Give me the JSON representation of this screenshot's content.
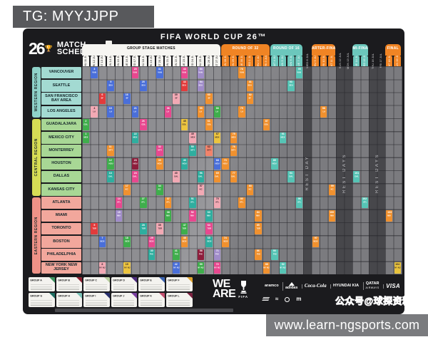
{
  "overlay": {
    "tg_badge": "TG: MYYJJPP",
    "url_bar": "www.learn-ngsports.com"
  },
  "poster": {
    "title": "FIFA WORLD CUP 26™",
    "logo": {
      "mark": "26",
      "trophy": "🏆",
      "line1": "MATCH",
      "line2": "SCHEDULE"
    },
    "weare": {
      "line1": "WE",
      "line2": "ARE",
      "fifa": "FIFA"
    },
    "watermark": "公众号@球探资料库"
  },
  "stage_tabs": [
    {
      "label": "GROUP STAGE MATCHES",
      "type": "white",
      "start": 0,
      "span": 17
    },
    {
      "label": "ROUND OF 32",
      "type": "orange",
      "start": 17,
      "span": 6
    },
    {
      "label": "ROUND OF 16",
      "type": "teal",
      "start": 23,
      "span": 4
    },
    {
      "label": "QUARTER-FINALS",
      "type": "orange",
      "start": 28,
      "span": 3
    },
    {
      "label": "SEMI-FINALS",
      "type": "teal",
      "start": 33,
      "span": 2
    },
    {
      "label": "FINAL",
      "type": "orange",
      "start": 37,
      "span": 2
    }
  ],
  "columns": [
    {
      "date": "THU 11 JUN",
      "stage": "group"
    },
    {
      "date": "FRI 12 JUN",
      "stage": "group"
    },
    {
      "date": "SAT 13 JUN",
      "stage": "group"
    },
    {
      "date": "SUN 14 JUN",
      "stage": "group"
    },
    {
      "date": "MON 15 JUN",
      "stage": "group"
    },
    {
      "date": "TUE 16 JUN",
      "stage": "group"
    },
    {
      "date": "WED 17 JUN",
      "stage": "group"
    },
    {
      "date": "THU 18 JUN",
      "stage": "group"
    },
    {
      "date": "FRI 19 JUN",
      "stage": "group"
    },
    {
      "date": "SAT 20 JUN",
      "stage": "group"
    },
    {
      "date": "SUN 21 JUN",
      "stage": "group"
    },
    {
      "date": "MON 22 JUN",
      "stage": "group"
    },
    {
      "date": "TUE 23 JUN",
      "stage": "group"
    },
    {
      "date": "WED 24 JUN",
      "stage": "group"
    },
    {
      "date": "THU 25 JUN",
      "stage": "group"
    },
    {
      "date": "FRI 26 JUN",
      "stage": "group"
    },
    {
      "date": "SAT 27 JUN",
      "stage": "group"
    },
    {
      "date": "SUN 28 JUN",
      "stage": "r32"
    },
    {
      "date": "MON 29 JUN",
      "stage": "r32"
    },
    {
      "date": "TUE 30 JUN",
      "stage": "r32"
    },
    {
      "date": "WED 1 JUL",
      "stage": "r32"
    },
    {
      "date": "THU 2 JUL",
      "stage": "r32"
    },
    {
      "date": "FRI 3 JUL",
      "stage": "r32"
    },
    {
      "date": "SAT 4 JUL",
      "stage": "r16"
    },
    {
      "date": "SUN 5 JUL",
      "stage": "r16"
    },
    {
      "date": "MON 6 JUL",
      "stage": "r16"
    },
    {
      "date": "TUE 7 JUL",
      "stage": "r16"
    },
    {
      "date": "WED 8 JUL",
      "stage": "rest"
    },
    {
      "date": "THU 9 JUL",
      "stage": "qf"
    },
    {
      "date": "FRI 10 JUL",
      "stage": "qf"
    },
    {
      "date": "SAT 11 JUL",
      "stage": "qf"
    },
    {
      "date": "SUN 12 JUL",
      "stage": "rest"
    },
    {
      "date": "MON 13 JUL",
      "stage": "rest"
    },
    {
      "date": "TUE 14 JUL",
      "stage": "sf"
    },
    {
      "date": "WED 15 JUL",
      "stage": "sf"
    },
    {
      "date": "THU 16 JUL",
      "stage": "rest"
    },
    {
      "date": "FRI 17 JUL",
      "stage": "rest"
    },
    {
      "date": "SAT 18 JUL",
      "stage": "final"
    },
    {
      "date": "SUN 19 JUL",
      "stage": "final"
    }
  ],
  "rest_notes": [
    {
      "label": "REST DAY",
      "start": 27,
      "span": 1
    },
    {
      "label": "REST DAYS",
      "start": 31,
      "span": 2
    },
    {
      "label": "REST DAYS",
      "start": 35,
      "span": 2
    }
  ],
  "regions": [
    {
      "label": "WESTERN REGION",
      "strip": "#8fd2c9",
      "cell": "#a3dad2",
      "row0": 0,
      "rows": 4
    },
    {
      "label": "CENTRAL REGION",
      "strip": "#d6dc55",
      "cell": "#a8d795",
      "row0": 4,
      "rows": 6
    },
    {
      "label": "EASTERN REGION",
      "strip": "#ef9287",
      "cell": "#f2a79c",
      "row0": 10,
      "rows": 6
    }
  ],
  "cities": [
    {
      "name": "VANCOUVER",
      "code": "VAN",
      "region": 0
    },
    {
      "name": "SEATTLE",
      "code": "SEA",
      "region": 0
    },
    {
      "name": "SAN FRANCISCO BAY AREA",
      "code": "SF",
      "region": 0
    },
    {
      "name": "LOS ANGELES",
      "code": "LA",
      "region": 0
    },
    {
      "name": "GUADALAJARA",
      "code": "GDL",
      "region": 1
    },
    {
      "name": "MEXICO CITY",
      "code": "MEX",
      "region": 1
    },
    {
      "name": "MONTERREY",
      "code": "MTY",
      "region": 1
    },
    {
      "name": "HOUSTON",
      "code": "HOU",
      "region": 1
    },
    {
      "name": "DALLAS",
      "code": "DAL",
      "region": 1
    },
    {
      "name": "KANSAS CITY",
      "code": "KC",
      "region": 1
    },
    {
      "name": "ATLANTA",
      "code": "ATL",
      "region": 2
    },
    {
      "name": "MIAMI",
      "code": "MIA",
      "region": 2
    },
    {
      "name": "TORONTO",
      "code": "TOR",
      "region": 2
    },
    {
      "name": "BOSTON",
      "code": "BOS",
      "region": 2
    },
    {
      "name": "PHILADELPHIA",
      "code": "PHI",
      "region": 2
    },
    {
      "name": "NEW YORK NEW JERSEY",
      "code": "NY NJ",
      "region": 2
    }
  ],
  "cell_colors": {
    "blu": "#4a6fd9",
    "red": "#e23b3c",
    "pnk": "#f2a9b4",
    "mag": "#e8488f",
    "pur": "#a08cc9",
    "tea": "#2fae9f",
    "grn": "#3fae4c",
    "org": "#f0912f",
    "drd": "#8e1e3c",
    "yel": "#ecc43f",
    "sal": "#f2836b",
    "te2": "#56c4b5",
    "gld": "#e8c33c"
  },
  "dark_text_colors": [
    "pnk",
    "yel",
    "sal",
    "gld"
  ],
  "cells_format": "[rowIndex, colIndex, colorKey, matchNumber]",
  "cells": [
    [
      5,
      0,
      "grn",
      "1"
    ],
    [
      4,
      0,
      "grn",
      "2"
    ],
    [
      0,
      1,
      "blu",
      "3"
    ],
    [
      3,
      1,
      "pnk",
      "4"
    ],
    [
      12,
      1,
      "red",
      "5"
    ],
    [
      2,
      2,
      "red",
      "6"
    ],
    [
      13,
      2,
      "blu",
      "7"
    ],
    [
      15,
      2,
      "pnk",
      "8"
    ],
    [
      1,
      3,
      "blu",
      "9"
    ],
    [
      3,
      3,
      "blu",
      "10"
    ],
    [
      6,
      3,
      "org",
      "11"
    ],
    [
      7,
      3,
      "grn",
      "12"
    ],
    [
      8,
      3,
      "tea",
      "13"
    ],
    [
      10,
      4,
      "mag",
      "14"
    ],
    [
      11,
      4,
      "pur",
      "15"
    ],
    [
      2,
      5,
      "blu",
      "16"
    ],
    [
      9,
      5,
      "org",
      "17"
    ],
    [
      13,
      5,
      "grn",
      "18"
    ],
    [
      15,
      5,
      "yel",
      "19"
    ],
    [
      0,
      6,
      "mag",
      "20"
    ],
    [
      3,
      6,
      "blu",
      "21"
    ],
    [
      5,
      6,
      "tea",
      "22"
    ],
    [
      7,
      6,
      "drd",
      "23"
    ],
    [
      8,
      6,
      "mag",
      "24"
    ],
    [
      1,
      7,
      "blu",
      "25"
    ],
    [
      4,
      7,
      "mag",
      "26"
    ],
    [
      10,
      7,
      "grn",
      "27"
    ],
    [
      12,
      7,
      "tea",
      "28"
    ],
    [
      13,
      8,
      "mag",
      "29"
    ],
    [
      14,
      8,
      "tea",
      "30"
    ],
    [
      0,
      9,
      "blu",
      "31"
    ],
    [
      6,
      9,
      "mag",
      "32"
    ],
    [
      7,
      9,
      "org",
      "33"
    ],
    [
      9,
      9,
      "grn",
      "34"
    ],
    [
      12,
      9,
      "pnk",
      "35"
    ],
    [
      3,
      10,
      "mag",
      "36"
    ],
    [
      10,
      10,
      "org",
      "37"
    ],
    [
      11,
      10,
      "grn",
      "38"
    ],
    [
      2,
      11,
      "pnk",
      "39"
    ],
    [
      8,
      11,
      "pnk",
      "40"
    ],
    [
      14,
      11,
      "grn",
      "41"
    ],
    [
      15,
      11,
      "blu",
      "42"
    ],
    [
      0,
      12,
      "mag",
      "43"
    ],
    [
      1,
      12,
      "red",
      "44"
    ],
    [
      4,
      12,
      "yel",
      "45"
    ],
    [
      7,
      12,
      "tea",
      "46"
    ],
    [
      12,
      12,
      "grn",
      "47"
    ],
    [
      13,
      12,
      "org",
      "48"
    ],
    [
      5,
      13,
      "pnk",
      "49"
    ],
    [
      6,
      13,
      "tea",
      "50"
    ],
    [
      10,
      13,
      "tea",
      "51"
    ],
    [
      11,
      13,
      "mag",
      "52"
    ],
    [
      0,
      14,
      "pur",
      "53"
    ],
    [
      1,
      14,
      "pur",
      "54"
    ],
    [
      3,
      14,
      "org",
      "55"
    ],
    [
      8,
      14,
      "tea",
      "56"
    ],
    [
      9,
      14,
      "pnk",
      "57"
    ],
    [
      14,
      14,
      "drd",
      "58"
    ],
    [
      15,
      14,
      "grn",
      "59"
    ],
    [
      2,
      15,
      "org",
      "60"
    ],
    [
      4,
      15,
      "org",
      "61"
    ],
    [
      6,
      15,
      "sal",
      "62"
    ],
    [
      11,
      15,
      "tea",
      "63"
    ],
    [
      12,
      15,
      "mag",
      "64"
    ],
    [
      13,
      15,
      "tea",
      "65"
    ],
    [
      3,
      16,
      "grn",
      "66"
    ],
    [
      5,
      16,
      "yel",
      "67"
    ],
    [
      7,
      16,
      "blu",
      "68"
    ],
    [
      8,
      16,
      "org",
      "69"
    ],
    [
      10,
      16,
      "pnk",
      "70"
    ],
    [
      14,
      16,
      "pur",
      "71"
    ],
    [
      15,
      16,
      "mag",
      "72"
    ],
    [
      7,
      17,
      "org",
      "73"
    ],
    [
      13,
      17,
      "org",
      "74"
    ],
    [
      5,
      18,
      "org",
      "75"
    ],
    [
      6,
      18,
      "org",
      "76"
    ],
    [
      8,
      18,
      "org",
      "77"
    ],
    [
      0,
      19,
      "org",
      "78"
    ],
    [
      3,
      19,
      "org",
      "79"
    ],
    [
      10,
      19,
      "org",
      "80"
    ],
    [
      1,
      20,
      "org",
      "81"
    ],
    [
      2,
      20,
      "org",
      "82"
    ],
    [
      9,
      20,
      "org",
      "83"
    ],
    [
      11,
      21,
      "org",
      "84"
    ],
    [
      12,
      21,
      "org",
      "85"
    ],
    [
      14,
      21,
      "org",
      "86"
    ],
    [
      4,
      22,
      "org",
      "87"
    ],
    [
      15,
      22,
      "org",
      "88"
    ],
    [
      7,
      23,
      "te2",
      "89"
    ],
    [
      14,
      23,
      "te2",
      "90"
    ],
    [
      5,
      24,
      "te2",
      "91"
    ],
    [
      15,
      24,
      "te2",
      "92"
    ],
    [
      1,
      25,
      "te2",
      "93"
    ],
    [
      8,
      25,
      "te2",
      "94"
    ],
    [
      0,
      26,
      "te2",
      "95"
    ],
    [
      10,
      26,
      "te2",
      "96"
    ],
    [
      13,
      28,
      "org",
      "97"
    ],
    [
      3,
      29,
      "org",
      "98"
    ],
    [
      9,
      30,
      "org",
      "99"
    ],
    [
      11,
      30,
      "org",
      "100"
    ],
    [
      8,
      33,
      "te2",
      "101"
    ],
    [
      10,
      34,
      "te2",
      "102"
    ],
    [
      11,
      37,
      "org",
      "103"
    ],
    [
      15,
      38,
      "gld",
      "104"
    ]
  ],
  "groups": [
    {
      "label": "GROUP A",
      "color": "#3d9460"
    },
    {
      "label": "GROUP B",
      "color": "#8e1e2f"
    },
    {
      "label": "GROUP C",
      "color": "#b9cf9f"
    },
    {
      "label": "GROUP D",
      "color": "#4b2a7e"
    },
    {
      "label": "GROUP E",
      "color": "#3b63b0"
    },
    {
      "label": "GROUP F",
      "color": "#e0a32e"
    },
    {
      "label": "GROUP G",
      "color": "#1f6f63"
    },
    {
      "label": "GROUP H",
      "color": "#79c2b6"
    },
    {
      "label": "GROUP I",
      "color": "#28306e"
    },
    {
      "label": "GROUP J",
      "color": "#7b3fa0"
    },
    {
      "label": "GROUP K",
      "color": "#c2506e"
    },
    {
      "label": "GROUP L",
      "color": "#7c2140"
    }
  ],
  "sponsors_row1": [
    {
      "name": "aramco",
      "style": "plain"
    },
    {
      "name": "adidas",
      "style": "adidas"
    },
    {
      "name": "Coca-Cola",
      "style": "coca"
    },
    {
      "name": "HYUNDAI KIA",
      "style": "plain"
    },
    {
      "name": "QATAR",
      "sub": "AIRWAYS",
      "style": "qatar"
    },
    {
      "name": "VISA",
      "style": "visa"
    }
  ],
  "sponsors_row2_icons": [
    "bank-of-america-flag",
    "mengniu-swoosh",
    "verizon-globe",
    "mcdonalds-m"
  ],
  "mcdonalds_glyph": "m",
  "stage_colors": {
    "white": "#f6f5f1",
    "orange": "#f08424",
    "teal": "#6cc7bc"
  }
}
